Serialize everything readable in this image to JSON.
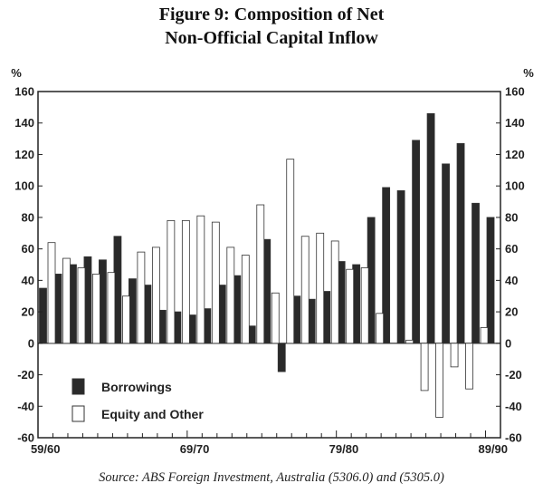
{
  "title_line1": "Figure 9: Composition of Net",
  "title_line2": "Non-Official Capital Inflow",
  "source": "Source: ABS Foreign Investment, Australia (5306.0) and (5305.0)",
  "chart_data": {
    "type": "bar",
    "ylabel_left": "%",
    "ylabel_right": "%",
    "ylim": [
      -60,
      160
    ],
    "yticks": [
      -60,
      -40,
      -20,
      0,
      20,
      40,
      60,
      80,
      100,
      120,
      140,
      160
    ],
    "xtick_labels": [
      "59/60",
      "69/70",
      "79/80",
      "89/90"
    ],
    "legend_placement": "bottom-left",
    "colors": {
      "Borrowings": "#2a2a2a",
      "Equity and Other": "#ffffff"
    },
    "categories": [
      "59/60",
      "60/61",
      "61/62",
      "62/63",
      "63/64",
      "64/65",
      "65/66",
      "66/67",
      "67/68",
      "68/69",
      "69/70",
      "70/71",
      "71/72",
      "72/73",
      "73/74",
      "74/75",
      "75/76",
      "76/77",
      "77/78",
      "78/79",
      "79/80",
      "80/81",
      "81/82",
      "82/83",
      "83/84",
      "84/85",
      "85/86",
      "86/87",
      "87/88",
      "88/89",
      "89/90"
    ],
    "series": [
      {
        "name": "Borrowings",
        "values": [
          35,
          44,
          50,
          55,
          53,
          68,
          41,
          37,
          21,
          20,
          18,
          22,
          37,
          43,
          11,
          66,
          -18,
          30,
          28,
          33,
          52,
          50,
          80,
          99,
          97,
          129,
          146,
          114,
          127,
          89,
          80
        ]
      },
      {
        "name": "Equity and Other",
        "values": [
          64,
          54,
          48,
          44,
          45,
          30,
          58,
          61,
          78,
          78,
          81,
          77,
          61,
          56,
          88,
          32,
          117,
          68,
          70,
          65,
          47,
          48,
          19,
          0,
          2,
          -30,
          -47,
          -15,
          -29,
          10,
          0
        ]
      }
    ]
  }
}
